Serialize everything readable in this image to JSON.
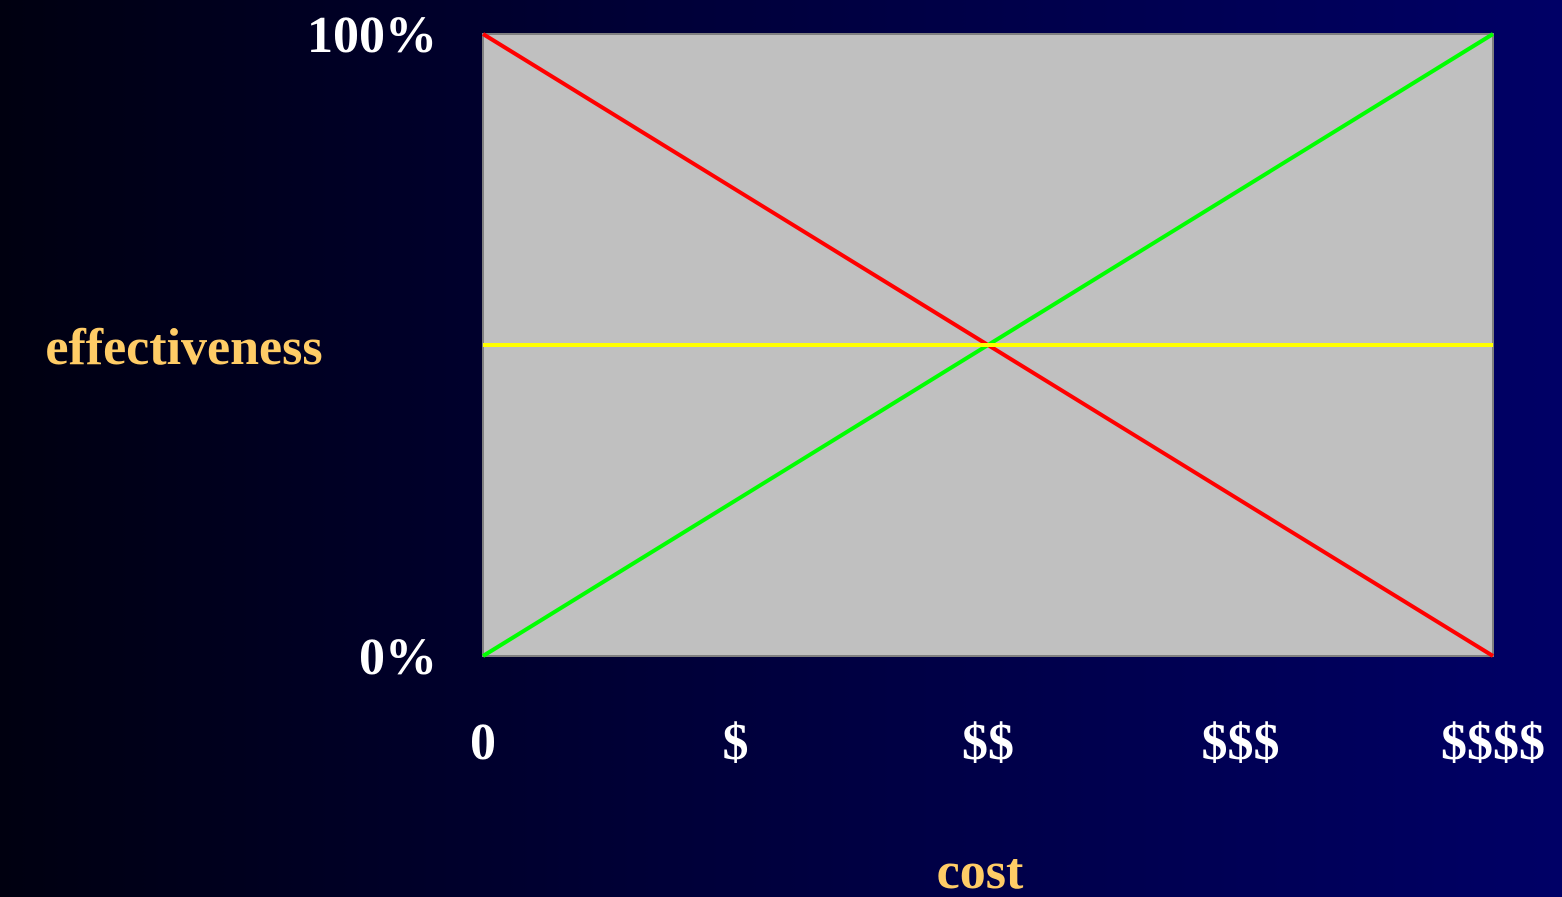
{
  "chart_data": {
    "type": "line",
    "xlabel": "cost",
    "ylabel": "effectiveness",
    "x_ticks": [
      "0",
      "$",
      "$$",
      "$$$",
      "$$$$"
    ],
    "y_ticks": [
      {
        "value": 0,
        "label": "0%"
      },
      {
        "value": 100,
        "label": "100%"
      }
    ],
    "xlim": [
      0,
      4
    ],
    "ylim": [
      0,
      100
    ],
    "grid": false,
    "plot_background": "#c0c0c0",
    "series": [
      {
        "color": "#ff0000",
        "x": [
          0,
          4
        ],
        "y": [
          100,
          0
        ]
      },
      {
        "color": "#00ff00",
        "x": [
          0,
          4
        ],
        "y": [
          0,
          100
        ]
      },
      {
        "color": "#ffff00",
        "x": [
          0,
          4
        ],
        "y": [
          50,
          50
        ]
      }
    ]
  },
  "colors": {
    "tick_text": "#ffffff",
    "axis_label_text": "#ffcc66"
  }
}
